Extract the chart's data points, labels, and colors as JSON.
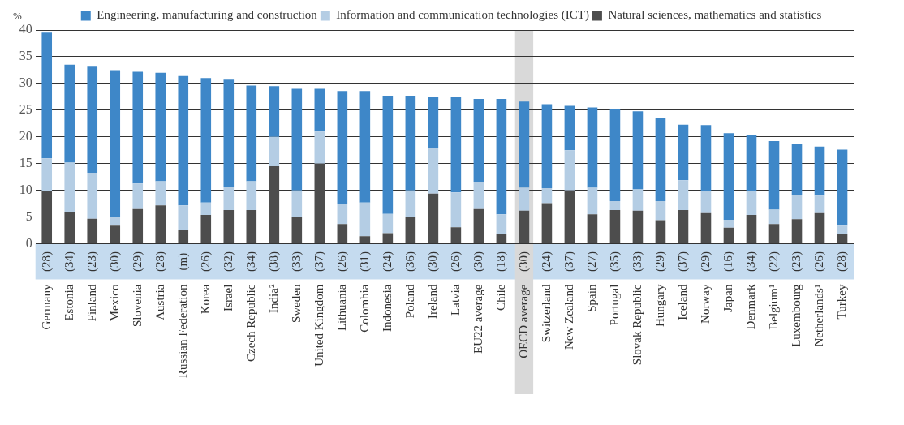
{
  "chart_data": {
    "type": "bar",
    "stacked": true,
    "ylabel": "%",
    "legend": "top",
    "grid": "y",
    "categories": [
      "Germany",
      "Estonia",
      "Finland",
      "Mexico",
      "Slovenia",
      "Austria",
      "Russian Federation",
      "Korea",
      "Israel",
      "Czech Republic",
      "India²",
      "Sweden",
      "United Kingdom",
      "Lithuania",
      "Colombia",
      "Indonesia",
      "Poland",
      "Ireland",
      "Latvia",
      "EU22 average",
      "Chile",
      "OECD average",
      "Switzerland",
      "New Zealand",
      "Spain",
      "Portugal",
      "Slovak Republic",
      "Hungary",
      "Iceland",
      "Norway",
      "Japan",
      "Denmark",
      "Belgium¹",
      "Luxembourg",
      "Netherlands¹",
      "Turkey"
    ],
    "series": [
      {
        "name": "Natural sciences, mathematics and statistics",
        "color": "#4d4d4d",
        "values": [
          9.8,
          6,
          4.7,
          3.4,
          6.5,
          7.2,
          2.6,
          5.4,
          6.3,
          6.3,
          14.5,
          5,
          15,
          3.7,
          1.4,
          2,
          5,
          9.4,
          3.1,
          6.5,
          1.8,
          6.2,
          7.6,
          10,
          5.5,
          6.3,
          6.2,
          4.4,
          6.3,
          5.9,
          3,
          5.4,
          3.7,
          4.6,
          5.9,
          1.9
        ]
      },
      {
        "name": "Information and communication technologies (ICT)",
        "color": "#b4cde4",
        "values": [
          6.2,
          9.2,
          8.6,
          1.6,
          4.8,
          4.5,
          4.6,
          2.3,
          4.3,
          5.4,
          5.5,
          5,
          6,
          3.8,
          6.3,
          3.6,
          5,
          8.5,
          6.5,
          5.1,
          3.7,
          4.3,
          2.8,
          7.5,
          5,
          1.7,
          4,
          3.6,
          5.6,
          4,
          1.5,
          4.4,
          2.7,
          4.5,
          3.1,
          1.5
        ]
      },
      {
        "name": "Engineering, manufacturing and construction",
        "color": "#3e87c8",
        "values": [
          23.5,
          18.3,
          20,
          27.5,
          20.9,
          20.3,
          24.2,
          23.3,
          20.1,
          17.9,
          9.5,
          19,
          8,
          21.1,
          20.9,
          22.1,
          17.7,
          9.5,
          17.8,
          15.5,
          21.6,
          16.1,
          15.7,
          8.3,
          15,
          17.2,
          14.6,
          15.5,
          10.4,
          12.3,
          16.2,
          10.5,
          12.8,
          9.5,
          9.2,
          14.2
        ]
      }
    ],
    "ylim": [
      0,
      40
    ],
    "yticks": [
      0,
      5,
      10,
      15,
      20,
      25,
      30,
      35,
      40
    ],
    "bands": [
      {
        "axis": "x",
        "from": "OECD average",
        "to": "OECD average",
        "color": "#d9d9d9"
      }
    ],
    "annotations": [
      "(28)",
      "(34)",
      "(23)",
      "(30)",
      "(29)",
      "(28)",
      "(m)",
      "(26)",
      "(32)",
      "(34)",
      "(38)",
      "(33)",
      "(37)",
      "(26)",
      "(31)",
      "(24)",
      "(36)",
      "(30)",
      "(26)",
      "(30)",
      "(18)",
      "(30)",
      "(24)",
      "(37)",
      "(27)",
      "(35)",
      "(33)",
      "(29)",
      "(37)",
      "(29)",
      "(16)",
      "(34)",
      "(22)",
      "(23)",
      "(26)",
      "(28)"
    ]
  }
}
